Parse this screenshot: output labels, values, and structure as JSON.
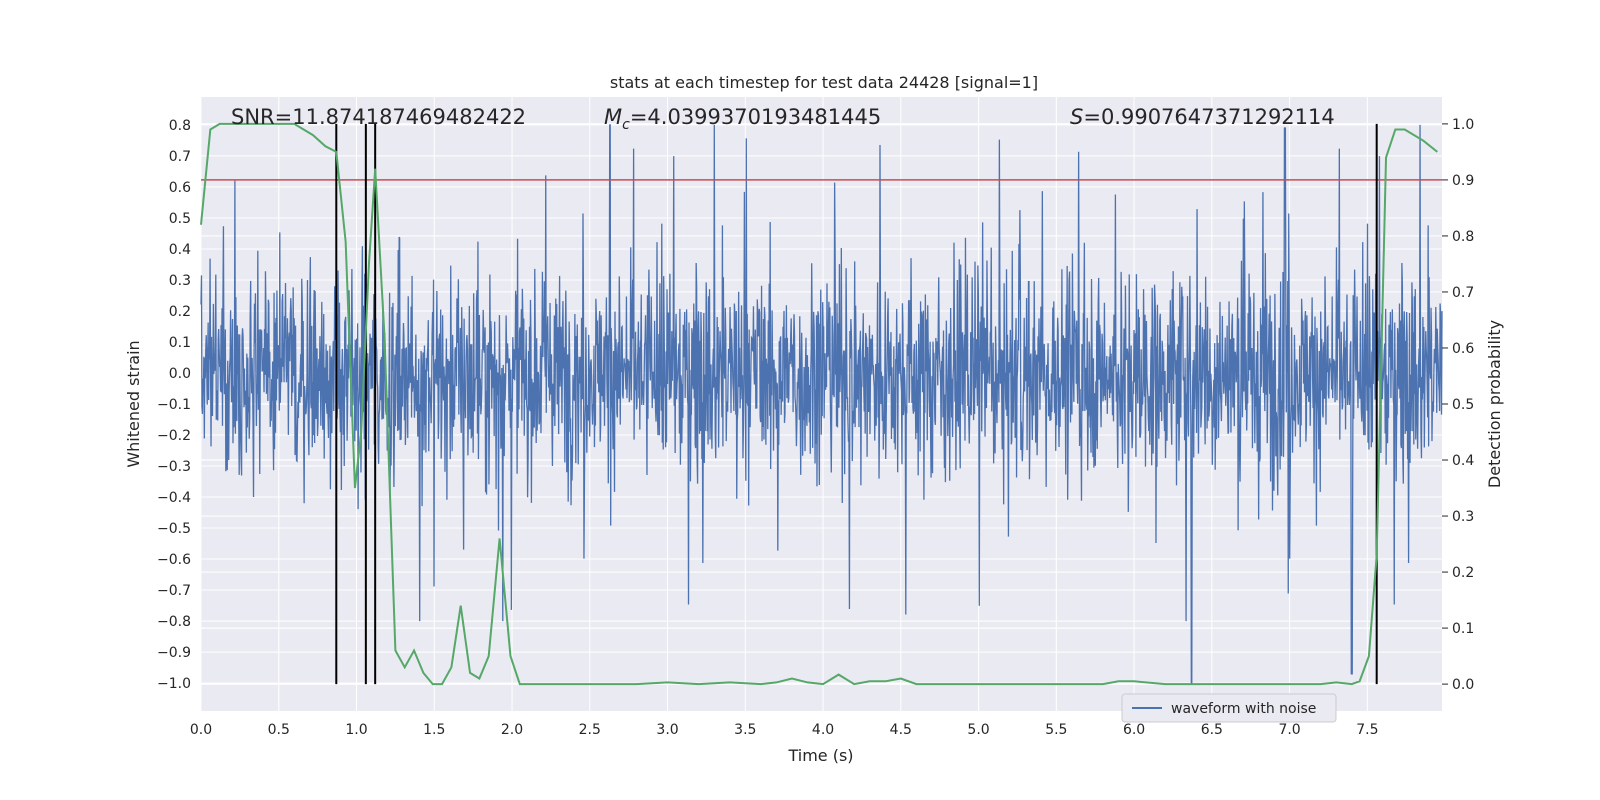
{
  "chart_data": {
    "type": "line",
    "title": "stats at each timestep for test data 24428 [signal=1]",
    "xlabel": "Time (s)",
    "ylabel": "Whitened strain",
    "y2label": "Detection probability",
    "xlim": [
      0.0,
      7.98
    ],
    "ylim": [
      -1.09,
      0.89
    ],
    "y2lim": [
      -0.048,
      1.048
    ],
    "xticks": [
      "0.0",
      "0.5",
      "1.0",
      "1.5",
      "2.0",
      "2.5",
      "3.0",
      "3.5",
      "4.0",
      "4.5",
      "5.0",
      "5.5",
      "6.0",
      "6.5",
      "7.0",
      "7.5"
    ],
    "yticks": [
      "0.8",
      "0.7",
      "0.6",
      "0.5",
      "0.4",
      "0.3",
      "0.2",
      "0.1",
      "0.0",
      "−0.1",
      "−0.2",
      "−0.3",
      "−0.4",
      "−0.5",
      "−0.6",
      "−0.7",
      "−0.8",
      "−0.9",
      "−1.0"
    ],
    "y2ticks": [
      "1.0",
      "0.9",
      "0.8",
      "0.7",
      "0.6",
      "0.5",
      "0.4",
      "0.3",
      "0.2",
      "0.1",
      "0.0"
    ],
    "annotations": {
      "snr": "SNR=11.874187469482422",
      "mc_symbol": "M",
      "mc_sub": "c",
      "mc_value": "=4.0399370193481445",
      "s_symbol": "S",
      "s_value": "=0.9907647371292114"
    },
    "threshold_line": {
      "value_probability": 0.9,
      "color": "#c44e52"
    },
    "detection_markers_x": [
      0.87,
      1.06,
      1.12,
      7.56
    ],
    "legend": {
      "label": "waveform with noise",
      "location": "lower-right"
    },
    "series": [
      {
        "name": "waveform with noise",
        "axis": "left",
        "color": "#4c72b0",
        "description_values": "whitened strain noise, roughly within ±0.45 with spikes to ±0.8; large negative spikes near 6.37 s and 7.4 s"
      },
      {
        "name": "detection probability",
        "axis": "right",
        "color": "#55a868",
        "x": [
          0.0,
          0.06,
          0.12,
          0.2,
          0.3,
          0.4,
          0.5,
          0.6,
          0.66,
          0.72,
          0.8,
          0.87,
          0.93,
          0.99,
          1.03,
          1.08,
          1.12,
          1.18,
          1.25,
          1.31,
          1.37,
          1.43,
          1.49,
          1.55,
          1.61,
          1.67,
          1.73,
          1.79,
          1.85,
          1.92,
          1.99,
          2.05,
          2.15,
          2.3,
          2.5,
          2.7,
          2.8,
          3.0,
          3.2,
          3.4,
          3.6,
          3.7,
          3.8,
          3.9,
          4.0,
          4.1,
          4.2,
          4.3,
          4.4,
          4.5,
          4.6,
          4.8,
          5.0,
          5.2,
          5.4,
          5.6,
          5.7,
          5.8,
          5.9,
          6.0,
          6.2,
          6.4,
          6.6,
          6.8,
          7.0,
          7.2,
          7.3,
          7.4,
          7.45,
          7.51,
          7.56,
          7.62,
          7.68,
          7.74,
          7.86,
          7.95
        ],
        "values": [
          0.82,
          0.99,
          1.0,
          1.0,
          1.0,
          1.0,
          1.0,
          1.0,
          0.99,
          0.98,
          0.96,
          0.95,
          0.79,
          0.35,
          0.45,
          0.75,
          0.92,
          0.62,
          0.06,
          0.03,
          0.06,
          0.02,
          0.0,
          0.0,
          0.03,
          0.14,
          0.02,
          0.01,
          0.05,
          0.26,
          0.05,
          0.0,
          0.0,
          0.0,
          0.0,
          0.0,
          0.0,
          0.003,
          0.0,
          0.003,
          0.0,
          0.003,
          0.01,
          0.003,
          0.0,
          0.017,
          0.0,
          0.005,
          0.005,
          0.01,
          0.0,
          0.0,
          0.0,
          0.0,
          0.0,
          0.0,
          0.0,
          0.0,
          0.005,
          0.005,
          0.0,
          0.0,
          0.0,
          0.0,
          0.0,
          0.0,
          0.003,
          0.0,
          0.005,
          0.05,
          0.23,
          0.94,
          0.99,
          0.99,
          0.97,
          0.95
        ]
      }
    ]
  }
}
